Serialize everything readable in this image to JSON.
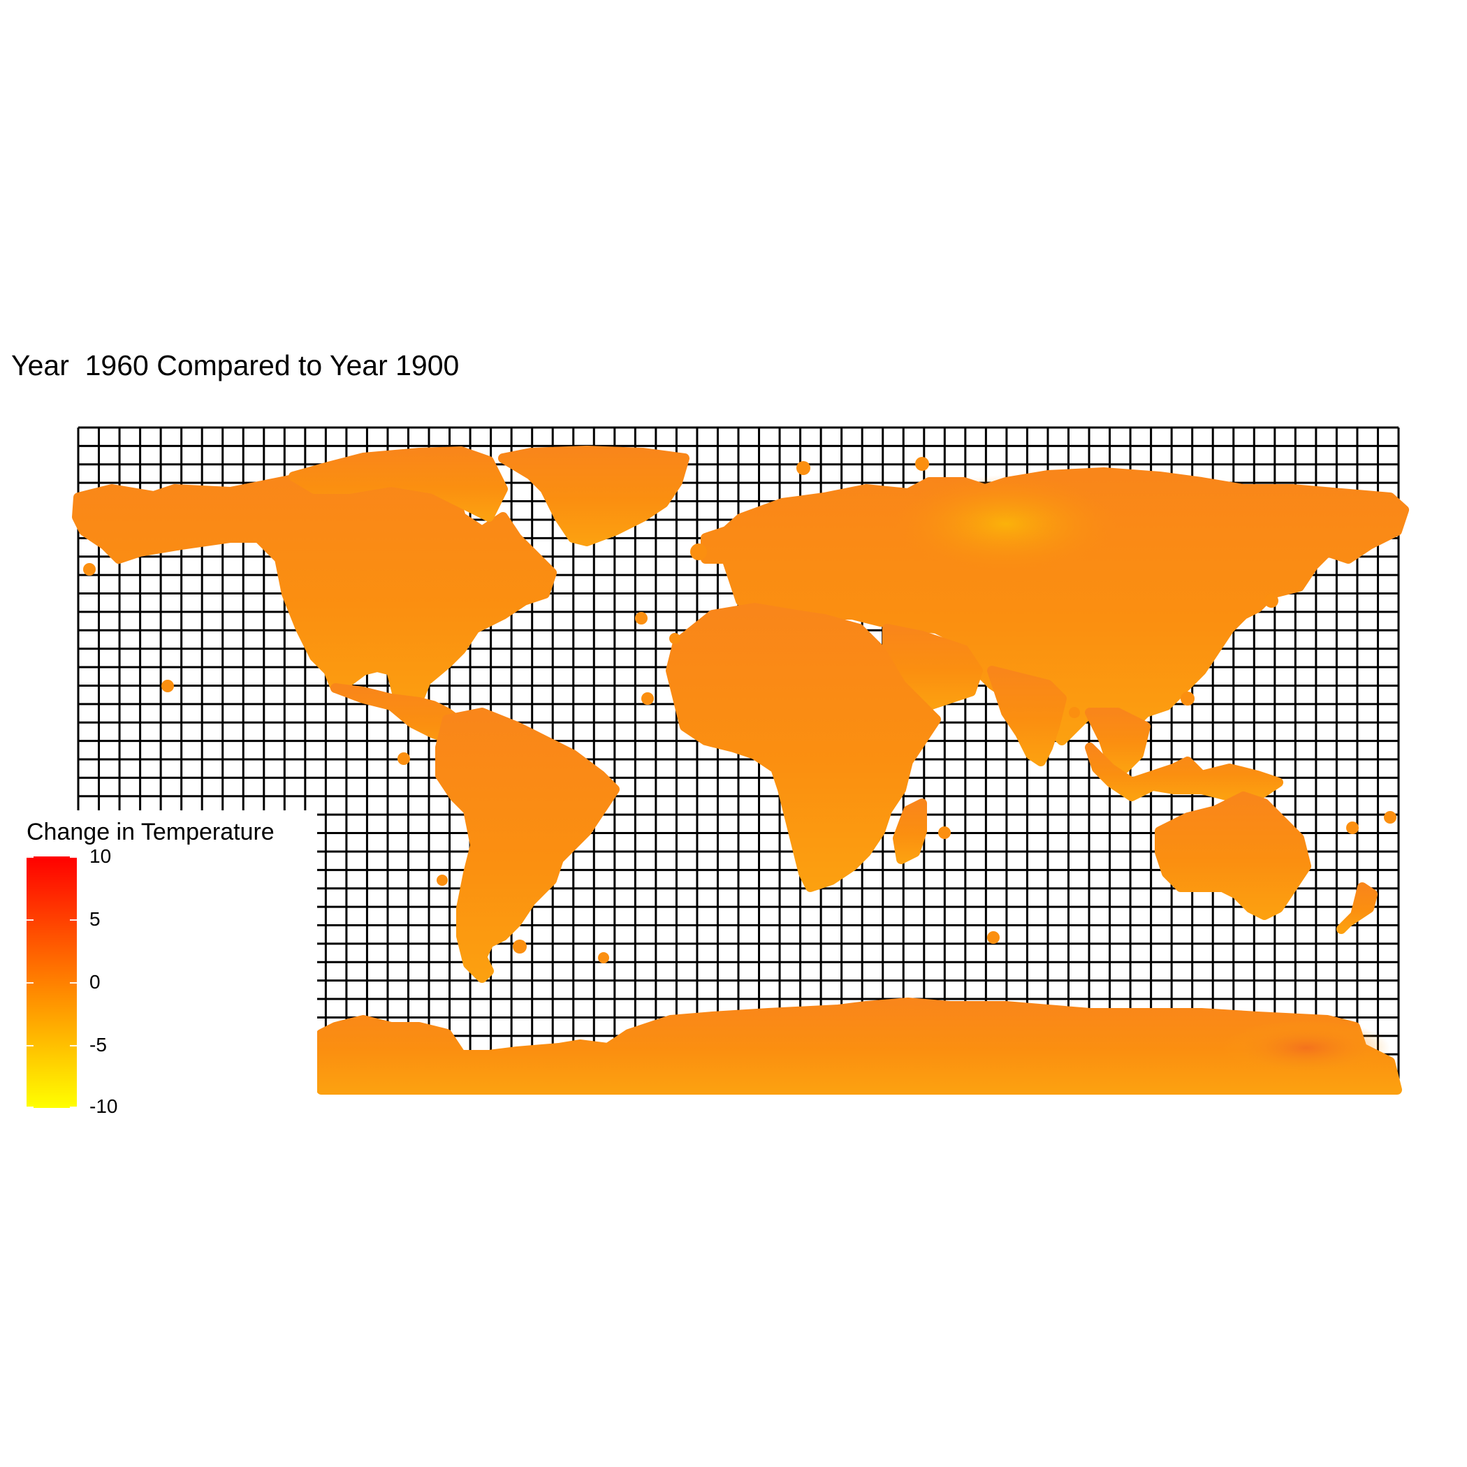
{
  "title": "Year  1960 Compared to Year 1900",
  "legend": {
    "title": "Change in Temperature",
    "labels": [
      "10",
      "5",
      "0",
      "-5",
      "-10"
    ]
  },
  "colors": {
    "scale_high": "#ff0000",
    "scale_mid": "#ff8000",
    "scale_low": "#ffff00",
    "land": "#fb8f10",
    "grid": "#000000",
    "background": "#ffffff"
  },
  "chart_data": {
    "type": "map",
    "projection": "equirectangular",
    "grid": true,
    "legend_position": "bottom-left",
    "color_scale": {
      "low": -10,
      "mid": 0,
      "high": 10
    },
    "lon_range": [
      -180,
      180
    ],
    "lat_range": [
      -90,
      90
    ]
  }
}
